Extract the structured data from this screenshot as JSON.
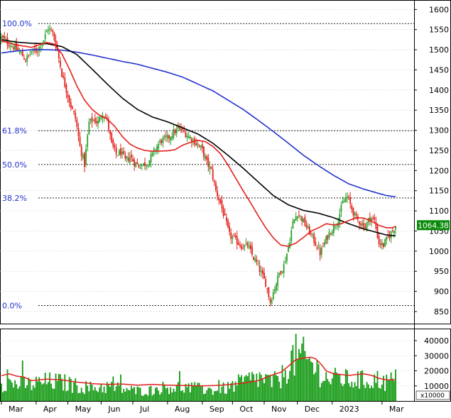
{
  "chart_data": {
    "type": "candlestick",
    "price_panel": {
      "y_ticks": [
        850,
        900,
        950,
        1000,
        1050,
        1100,
        1150,
        1200,
        1250,
        1300,
        1350,
        1400,
        1450,
        1500,
        1550,
        1600
      ],
      "ylim": [
        820,
        1620
      ],
      "last_price_label": "1064.38",
      "last_price": 1064.38,
      "fibonacci_levels": [
        {
          "label": "100.0%",
          "value": 1565
        },
        {
          "label": "61.8%",
          "value": 1299
        },
        {
          "label": "50.0%",
          "value": 1215
        },
        {
          "label": "38.2%",
          "value": 1132
        },
        {
          "label": "0.0%",
          "value": 865
        }
      ],
      "candle_count": 262,
      "anchors": [
        [
          0,
          1530
        ],
        [
          5,
          1515
        ],
        [
          9,
          1505
        ],
        [
          13,
          1490
        ],
        [
          16,
          1475
        ],
        [
          20,
          1495
        ],
        [
          24,
          1500
        ],
        [
          28,
          1525
        ],
        [
          31,
          1555
        ],
        [
          34,
          1540
        ],
        [
          37,
          1500
        ],
        [
          40,
          1440
        ],
        [
          43,
          1400
        ],
        [
          46,
          1360
        ],
        [
          49,
          1330
        ],
        [
          52,
          1260
        ],
        [
          55,
          1215
        ],
        [
          58,
          1320
        ],
        [
          61,
          1325
        ],
        [
          64,
          1320
        ],
        [
          67,
          1345
        ],
        [
          70,
          1325
        ],
        [
          73,
          1265
        ],
        [
          76,
          1240
        ],
        [
          79,
          1245
        ],
        [
          82,
          1225
        ],
        [
          85,
          1235
        ],
        [
          88,
          1220
        ],
        [
          91,
          1212
        ],
        [
          94,
          1215
        ],
        [
          97,
          1220
        ],
        [
          100,
          1240
        ],
        [
          103,
          1260
        ],
        [
          106,
          1275
        ],
        [
          110,
          1280
        ],
        [
          114,
          1295
        ],
        [
          118,
          1305
        ],
        [
          121,
          1295
        ],
        [
          124,
          1285
        ],
        [
          127,
          1275
        ],
        [
          130,
          1265
        ],
        [
          133,
          1250
        ],
        [
          136,
          1220
        ],
        [
          139,
          1200
        ],
        [
          142,
          1150
        ],
        [
          145,
          1120
        ],
        [
          148,
          1080
        ],
        [
          151,
          1040
        ],
        [
          154,
          1030
        ],
        [
          157,
          1020
        ],
        [
          160,
          1010
        ],
        [
          163,
          1015
        ],
        [
          166,
          990
        ],
        [
          169,
          970
        ],
        [
          172,
          945
        ],
        [
          175,
          920
        ],
        [
          178,
          875
        ],
        [
          181,
          910
        ],
        [
          184,
          945
        ],
        [
          187,
          965
        ],
        [
          190,
          1010
        ],
        [
          193,
          1070
        ],
        [
          196,
          1095
        ],
        [
          199,
          1080
        ],
        [
          202,
          1060
        ],
        [
          205,
          1040
        ],
        [
          208,
          1020
        ],
        [
          211,
          995
        ],
        [
          214,
          1020
        ],
        [
          217,
          1045
        ],
        [
          220,
          1060
        ],
        [
          223,
          1080
        ],
        [
          226,
          1120
        ],
        [
          229,
          1135
        ],
        [
          232,
          1105
        ],
        [
          235,
          1080
        ],
        [
          238,
          1070
        ],
        [
          241,
          1060
        ],
        [
          244,
          1085
        ],
        [
          247,
          1075
        ],
        [
          250,
          1020
        ],
        [
          253,
          1015
        ],
        [
          256,
          1035
        ],
        [
          259,
          1050
        ],
        [
          261,
          1064
        ]
      ],
      "ma_fast": [
        [
          0,
          1522
        ],
        [
          10,
          1512
        ],
        [
          20,
          1506
        ],
        [
          30,
          1518
        ],
        [
          35,
          1514
        ],
        [
          40,
          1490
        ],
        [
          45,
          1452
        ],
        [
          50,
          1410
        ],
        [
          55,
          1375
        ],
        [
          60,
          1352
        ],
        [
          65,
          1337
        ],
        [
          70,
          1328
        ],
        [
          75,
          1310
        ],
        [
          80,
          1285
        ],
        [
          85,
          1266
        ],
        [
          90,
          1256
        ],
        [
          95,
          1250
        ],
        [
          100,
          1248
        ],
        [
          110,
          1249
        ],
        [
          115,
          1252
        ],
        [
          120,
          1263
        ],
        [
          125,
          1270
        ],
        [
          130,
          1275
        ],
        [
          135,
          1272
        ],
        [
          140,
          1260
        ],
        [
          145,
          1242
        ],
        [
          150,
          1214
        ],
        [
          155,
          1182
        ],
        [
          160,
          1150
        ],
        [
          165,
          1120
        ],
        [
          170,
          1088
        ],
        [
          175,
          1058
        ],
        [
          180,
          1033
        ],
        [
          185,
          1015
        ],
        [
          190,
          1012
        ],
        [
          195,
          1020
        ],
        [
          200,
          1034
        ],
        [
          205,
          1050
        ],
        [
          210,
          1058
        ],
        [
          215,
          1068
        ],
        [
          220,
          1065
        ],
        [
          225,
          1068
        ],
        [
          230,
          1076
        ],
        [
          235,
          1083
        ],
        [
          240,
          1082
        ],
        [
          245,
          1074
        ],
        [
          250,
          1064
        ],
        [
          255,
          1058
        ],
        [
          259,
          1058
        ],
        [
          261,
          1062
        ]
      ],
      "ma_mid": [
        [
          0,
          1525
        ],
        [
          10,
          1519
        ],
        [
          20,
          1516
        ],
        [
          30,
          1515
        ],
        [
          40,
          1508
        ],
        [
          50,
          1488
        ],
        [
          60,
          1452
        ],
        [
          70,
          1415
        ],
        [
          80,
          1380
        ],
        [
          90,
          1352
        ],
        [
          100,
          1333
        ],
        [
          110,
          1321
        ],
        [
          120,
          1306
        ],
        [
          130,
          1291
        ],
        [
          140,
          1268
        ],
        [
          150,
          1238
        ],
        [
          160,
          1206
        ],
        [
          170,
          1172
        ],
        [
          180,
          1138
        ],
        [
          190,
          1115
        ],
        [
          200,
          1101
        ],
        [
          210,
          1094
        ],
        [
          220,
          1083
        ],
        [
          230,
          1068
        ],
        [
          240,
          1055
        ],
        [
          250,
          1045
        ],
        [
          255,
          1040
        ],
        [
          261,
          1038
        ]
      ],
      "ma_slow": [
        [
          0,
          1492
        ],
        [
          10,
          1497
        ],
        [
          20,
          1500
        ],
        [
          30,
          1500
        ],
        [
          40,
          1499
        ],
        [
          50,
          1494
        ],
        [
          60,
          1487
        ],
        [
          70,
          1479
        ],
        [
          80,
          1471
        ],
        [
          90,
          1464
        ],
        [
          100,
          1454
        ],
        [
          110,
          1444
        ],
        [
          120,
          1432
        ],
        [
          130,
          1415
        ],
        [
          140,
          1398
        ],
        [
          150,
          1375
        ],
        [
          160,
          1352
        ],
        [
          170,
          1325
        ],
        [
          180,
          1297
        ],
        [
          190,
          1268
        ],
        [
          200,
          1238
        ],
        [
          210,
          1212
        ],
        [
          220,
          1188
        ],
        [
          230,
          1167
        ],
        [
          240,
          1154
        ],
        [
          250,
          1143
        ],
        [
          255,
          1138
        ],
        [
          261,
          1135
        ]
      ]
    },
    "volume_panel": {
      "y_ticks": [
        10000,
        20000,
        30000,
        40000
      ],
      "ylim": [
        0,
        48000
      ],
      "unit_label": "x10000",
      "anchors": [
        [
          0,
          13000
        ],
        [
          10,
          12000
        ],
        [
          20,
          11500
        ],
        [
          30,
          13500
        ],
        [
          40,
          13000
        ],
        [
          50,
          10500
        ],
        [
          60,
          9000
        ],
        [
          70,
          10000
        ],
        [
          80,
          8500
        ],
        [
          90,
          7000
        ],
        [
          100,
          7500
        ],
        [
          110,
          10000
        ],
        [
          120,
          9500
        ],
        [
          130,
          8500
        ],
        [
          140,
          7500
        ],
        [
          150,
          9000
        ],
        [
          160,
          13500
        ],
        [
          170,
          16000
        ],
        [
          180,
          13000
        ],
        [
          186,
          17000
        ],
        [
          190,
          27000
        ],
        [
          195,
          31000
        ],
        [
          200,
          29500
        ],
        [
          205,
          26000
        ],
        [
          210,
          21000
        ],
        [
          215,
          16000
        ],
        [
          220,
          15000
        ],
        [
          225,
          16500
        ],
        [
          230,
          14000
        ],
        [
          235,
          15000
        ],
        [
          240,
          14000
        ],
        [
          245,
          14500
        ],
        [
          250,
          15000
        ],
        [
          255,
          13000
        ],
        [
          261,
          15000
        ]
      ],
      "ma": [
        [
          0,
          16800
        ],
        [
          5,
          18000
        ],
        [
          10,
          16500
        ],
        [
          15,
          15800
        ],
        [
          20,
          13500
        ],
        [
          30,
          14500
        ],
        [
          40,
          14000
        ],
        [
          50,
          12500
        ],
        [
          60,
          11500
        ],
        [
          70,
          11000
        ],
        [
          80,
          11200
        ],
        [
          90,
          10500
        ],
        [
          100,
          11000
        ],
        [
          110,
          10500
        ],
        [
          120,
          10300
        ],
        [
          130,
          10000
        ],
        [
          140,
          10200
        ],
        [
          150,
          10800
        ],
        [
          160,
          11800
        ],
        [
          170,
          13500
        ],
        [
          175,
          15500
        ],
        [
          180,
          17500
        ],
        [
          185,
          19000
        ],
        [
          190,
          23000
        ],
        [
          195,
          27500
        ],
        [
          200,
          28500
        ],
        [
          205,
          29000
        ],
        [
          208,
          28000
        ],
        [
          212,
          24000
        ],
        [
          215,
          20000
        ],
        [
          220,
          18000
        ],
        [
          225,
          17500
        ],
        [
          230,
          17000
        ],
        [
          235,
          17500
        ],
        [
          240,
          18000
        ],
        [
          245,
          17000
        ],
        [
          250,
          15000
        ],
        [
          255,
          14000
        ],
        [
          261,
          14000
        ]
      ]
    },
    "x_labels": [
      {
        "label": "Mar",
        "index": 0
      },
      {
        "label": "Apr",
        "index": 23
      },
      {
        "label": "May",
        "index": 44
      },
      {
        "label": "Jun",
        "index": 66
      },
      {
        "label": "Jul",
        "index": 87
      },
      {
        "label": "Aug",
        "index": 110
      },
      {
        "label": "Sep",
        "index": 133
      },
      {
        "label": "Oct",
        "index": 153
      },
      {
        "label": "Nov",
        "index": 174
      },
      {
        "label": "Dec",
        "index": 196
      },
      {
        "label": "2023",
        "index": 219
      },
      {
        "label": "Mar",
        "index": 252
      }
    ]
  },
  "colors": {
    "up": "#2aa02a",
    "down": "#e3201b",
    "ma_fast": "#e3201b",
    "ma_mid": "#000000",
    "ma_slow": "#2233cc",
    "fib_line": "#000000",
    "fib_label": "#2233cc",
    "grid": "#aaaaaa",
    "volume_bar": "#119911",
    "volume_ma": "#e3201b",
    "price_box_bg": "#0a8a0a",
    "price_box_text": "#ffffff"
  }
}
